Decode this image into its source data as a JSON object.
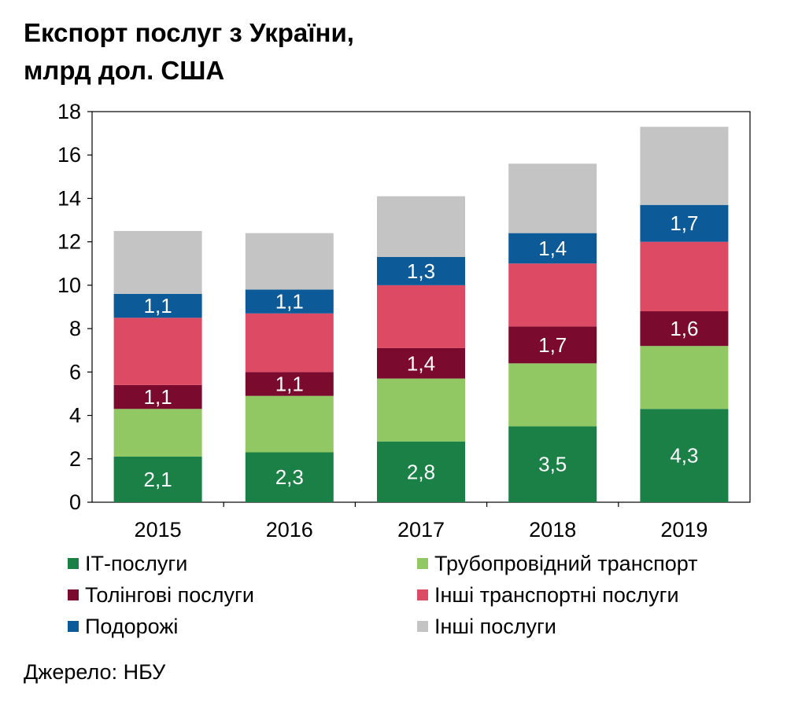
{
  "title_lines": [
    "Експорт послуг з України,",
    "млрд дол. США"
  ],
  "source": "Джерело: НБУ",
  "chart_data": {
    "type": "bar",
    "stacked": true,
    "categories": [
      "2015",
      "2016",
      "2017",
      "2018",
      "2019"
    ],
    "ylim": [
      0,
      18
    ],
    "yticks": [
      0,
      2,
      4,
      6,
      8,
      10,
      12,
      14,
      16,
      18
    ],
    "grid": false,
    "legend_position": "bottom",
    "series": [
      {
        "name": "ІТ-послуги",
        "color": "#1a8046",
        "values": [
          2.1,
          2.3,
          2.8,
          3.5,
          4.3
        ],
        "labels": [
          "2,1",
          "2,3",
          "2,8",
          "3,5",
          "4,3"
        ]
      },
      {
        "name": "Трубопровідний транспорт",
        "color": "#92c864",
        "values": [
          2.2,
          2.6,
          2.9,
          2.9,
          2.9
        ],
        "labels": [
          "",
          "",
          "",
          "",
          ""
        ]
      },
      {
        "name": "Толінгові послуги",
        "color": "#7a0a2e",
        "values": [
          1.1,
          1.1,
          1.4,
          1.7,
          1.6
        ],
        "labels": [
          "1,1",
          "1,1",
          "1,4",
          "1,7",
          "1,6"
        ]
      },
      {
        "name": "Інші транспортні послуги",
        "color": "#dc4a64",
        "values": [
          3.1,
          2.7,
          2.9,
          2.9,
          3.2
        ],
        "labels": [
          "",
          "",
          "",
          "",
          ""
        ]
      },
      {
        "name": "Подорожі",
        "color": "#0d5a98",
        "values": [
          1.1,
          1.1,
          1.3,
          1.4,
          1.7
        ],
        "labels": [
          "1,1",
          "1,1",
          "1,3",
          "1,4",
          "1,7"
        ]
      },
      {
        "name": "Інші послуги",
        "color": "#c4c4c4",
        "values": [
          2.9,
          2.6,
          2.8,
          3.2,
          3.6
        ],
        "labels": [
          "",
          "",
          "",
          "",
          ""
        ]
      }
    ],
    "legend_order": [
      0,
      1,
      2,
      3,
      4,
      5
    ]
  }
}
